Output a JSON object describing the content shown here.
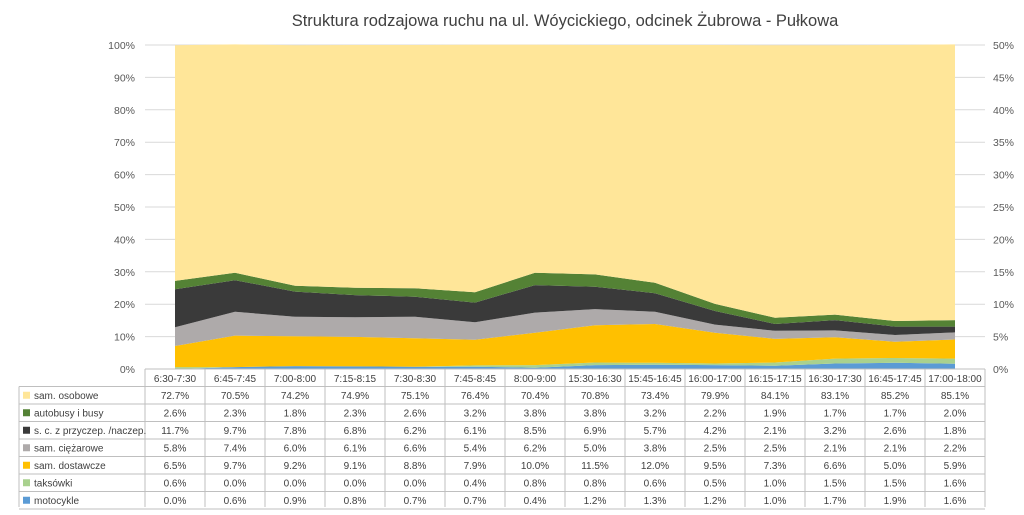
{
  "chart_data": {
    "type": "area",
    "title": "Struktura rodzajowa ruchu na ul. Wóycickiego, odcinek Żubrowa - Pułkowa",
    "stacked": true,
    "categories": [
      "6:30-7:30",
      "6:45-7:45",
      "7:00-8:00",
      "7:15-8:15",
      "7:30-8:30",
      "7:45-8:45",
      "8:00-9:00",
      "15:30-16:30",
      "15:45-16:45",
      "16:00-17:00",
      "16:15-17:15",
      "16:30-17:30",
      "16:45-17:45",
      "17:00-18:00"
    ],
    "y_left": {
      "ylim": [
        0,
        100
      ],
      "ticks": [
        "0%",
        "10%",
        "20%",
        "30%",
        "40%",
        "50%",
        "60%",
        "70%",
        "80%",
        "90%",
        "100%"
      ]
    },
    "y_right": {
      "ylim": [
        0,
        50
      ],
      "ticks": [
        "0%",
        "5%",
        "10%",
        "15%",
        "20%",
        "25%",
        "30%",
        "35%",
        "40%",
        "45%",
        "50%"
      ]
    },
    "grid": true,
    "legend": "data-table",
    "series": [
      {
        "name": "motocykle",
        "color": "#5b9bd5",
        "values": [
          0.0,
          0.6,
          0.9,
          0.8,
          0.7,
          0.7,
          0.4,
          1.2,
          1.3,
          1.2,
          1.0,
          1.7,
          1.9,
          1.6
        ],
        "labels": [
          "0.0%",
          "0.6%",
          "0.9%",
          "0.8%",
          "0.7%",
          "0.7%",
          "0.4%",
          "1.2%",
          "1.3%",
          "1.2%",
          "1.0%",
          "1.7%",
          "1.9%",
          "1.6%"
        ]
      },
      {
        "name": "taksówki",
        "color": "#a9d18e",
        "values": [
          0.6,
          0.0,
          0.0,
          0.0,
          0.0,
          0.4,
          0.8,
          0.8,
          0.6,
          0.5,
          1.0,
          1.5,
          1.5,
          1.6
        ],
        "labels": [
          "0.6%",
          "0.0%",
          "0.0%",
          "0.0%",
          "0.0%",
          "0.4%",
          "0.8%",
          "0.8%",
          "0.6%",
          "0.5%",
          "1.0%",
          "1.5%",
          "1.5%",
          "1.6%"
        ]
      },
      {
        "name": "sam. dostawcze",
        "color": "#ffc000",
        "values": [
          6.5,
          9.7,
          9.2,
          9.1,
          8.8,
          7.9,
          10.0,
          11.5,
          12.0,
          9.5,
          7.3,
          6.6,
          5.0,
          5.9
        ],
        "labels": [
          "6.5%",
          "9.7%",
          "9.2%",
          "9.1%",
          "8.8%",
          "7.9%",
          "10.0%",
          "11.5%",
          "12.0%",
          "9.5%",
          "7.3%",
          "6.6%",
          "5.0%",
          "5.9%"
        ]
      },
      {
        "name": "sam. ciężarowe",
        "color": "#aeaaaa",
        "values": [
          5.8,
          7.4,
          6.0,
          6.1,
          6.6,
          5.4,
          6.2,
          5.0,
          3.8,
          2.5,
          2.5,
          2.1,
          2.1,
          2.2
        ],
        "labels": [
          "5.8%",
          "7.4%",
          "6.0%",
          "6.1%",
          "6.6%",
          "5.4%",
          "6.2%",
          "5.0%",
          "3.8%",
          "2.5%",
          "2.5%",
          "2.1%",
          "2.1%",
          "2.2%"
        ]
      },
      {
        "name": "s. c. z przyczep. /naczep.",
        "color": "#3a3a3a",
        "values": [
          11.7,
          9.7,
          7.8,
          6.8,
          6.2,
          6.1,
          8.5,
          6.9,
          5.7,
          4.2,
          2.1,
          3.2,
          2.6,
          1.8
        ],
        "labels": [
          "11.7%",
          "9.7%",
          "7.8%",
          "6.8%",
          "6.2%",
          "6.1%",
          "8.5%",
          "6.9%",
          "5.7%",
          "4.2%",
          "2.1%",
          "3.2%",
          "2.6%",
          "1.8%"
        ]
      },
      {
        "name": "autobusy i busy",
        "color": "#548235",
        "values": [
          2.6,
          2.3,
          1.8,
          2.3,
          2.6,
          3.2,
          3.8,
          3.8,
          3.2,
          2.2,
          1.9,
          1.7,
          1.7,
          2.0
        ],
        "labels": [
          "2.6%",
          "2.3%",
          "1.8%",
          "2.3%",
          "2.6%",
          "3.2%",
          "3.8%",
          "3.8%",
          "3.2%",
          "2.2%",
          "1.9%",
          "1.7%",
          "1.7%",
          "2.0%"
        ]
      },
      {
        "name": "sam. osobowe",
        "color": "#ffe699",
        "values": [
          72.7,
          70.5,
          74.2,
          74.9,
          75.1,
          76.4,
          70.4,
          70.8,
          73.4,
          79.9,
          84.1,
          83.1,
          85.2,
          85.1
        ],
        "labels": [
          "72.7%",
          "70.5%",
          "74.2%",
          "74.9%",
          "75.1%",
          "76.4%",
          "70.4%",
          "70.8%",
          "73.4%",
          "79.9%",
          "84.1%",
          "83.1%",
          "85.2%",
          "85.1%"
        ]
      }
    ],
    "table_row_order": [
      "sam. osobowe",
      "autobusy i busy",
      "s. c. z przyczep. /naczep.",
      "sam. ciężarowe",
      "sam. dostawcze",
      "taksówki",
      "motocykle"
    ]
  }
}
